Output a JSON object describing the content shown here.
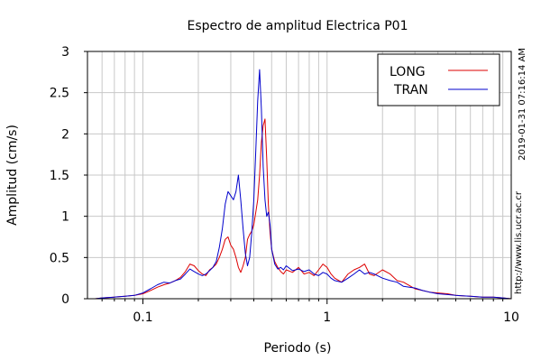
{
  "chart_data": {
    "type": "line",
    "title": "Espectro de amplitud Electrica P01",
    "xlabel": "Periodo (s)",
    "ylabel": "Amplitud (cm/s)",
    "x_scale": "log",
    "xlim": [
      0.05,
      10
    ],
    "ylim": [
      0,
      3
    ],
    "x_ticks": [
      {
        "value": 0.1,
        "label": "0.1"
      },
      {
        "value": 1,
        "label": "1"
      },
      {
        "value": 10,
        "label": "10"
      }
    ],
    "y_ticks": [
      {
        "value": 0,
        "label": "0"
      },
      {
        "value": 0.5,
        "label": "0.5"
      },
      {
        "value": 1,
        "label": "1"
      },
      {
        "value": 1.5,
        "label": "1.5"
      },
      {
        "value": 2,
        "label": "2"
      },
      {
        "value": 2.5,
        "label": "2.5"
      },
      {
        "value": 3,
        "label": "3"
      }
    ],
    "grid": true,
    "legend_position": "top-right",
    "side_text": [
      "2019-01-31 07:16:14 AM",
      "http://www.lis.ucr.ac.cr"
    ],
    "series": [
      {
        "name": "LONG",
        "color": "#dd0000",
        "x": [
          0.055,
          0.06,
          0.07,
          0.08,
          0.09,
          0.1,
          0.11,
          0.12,
          0.13,
          0.14,
          0.15,
          0.16,
          0.17,
          0.18,
          0.19,
          0.2,
          0.21,
          0.22,
          0.23,
          0.24,
          0.25,
          0.26,
          0.27,
          0.28,
          0.29,
          0.3,
          0.31,
          0.32,
          0.33,
          0.34,
          0.35,
          0.36,
          0.37,
          0.38,
          0.39,
          0.4,
          0.41,
          0.42,
          0.43,
          0.44,
          0.45,
          0.46,
          0.47,
          0.48,
          0.49,
          0.5,
          0.52,
          0.54,
          0.56,
          0.58,
          0.6,
          0.65,
          0.7,
          0.75,
          0.8,
          0.85,
          0.9,
          0.95,
          1.0,
          1.05,
          1.1,
          1.2,
          1.3,
          1.4,
          1.5,
          1.6,
          1.7,
          1.8,
          2.0,
          2.2,
          2.4,
          2.6,
          2.8,
          3.0,
          3.3,
          3.6,
          4.0,
          4.5,
          5.0,
          6.0,
          7.0,
          8.0,
          9.0,
          10.0
        ],
        "y": [
          0.0,
          0.01,
          0.02,
          0.03,
          0.04,
          0.06,
          0.1,
          0.14,
          0.17,
          0.19,
          0.22,
          0.26,
          0.33,
          0.42,
          0.4,
          0.34,
          0.3,
          0.28,
          0.35,
          0.38,
          0.42,
          0.5,
          0.6,
          0.72,
          0.75,
          0.65,
          0.6,
          0.5,
          0.38,
          0.32,
          0.4,
          0.5,
          0.72,
          0.78,
          0.82,
          0.9,
          1.05,
          1.2,
          1.5,
          1.9,
          2.1,
          2.18,
          1.7,
          1.15,
          0.8,
          0.6,
          0.45,
          0.38,
          0.33,
          0.3,
          0.35,
          0.32,
          0.38,
          0.3,
          0.32,
          0.28,
          0.35,
          0.42,
          0.38,
          0.3,
          0.25,
          0.2,
          0.3,
          0.35,
          0.38,
          0.42,
          0.3,
          0.28,
          0.35,
          0.3,
          0.22,
          0.2,
          0.16,
          0.12,
          0.1,
          0.08,
          0.07,
          0.06,
          0.04,
          0.03,
          0.02,
          0.02,
          0.01,
          0.0
        ]
      },
      {
        "name": "TRAN",
        "color": "#0000cc",
        "x": [
          0.055,
          0.06,
          0.07,
          0.08,
          0.09,
          0.1,
          0.11,
          0.12,
          0.13,
          0.14,
          0.15,
          0.16,
          0.17,
          0.18,
          0.19,
          0.2,
          0.21,
          0.22,
          0.23,
          0.24,
          0.25,
          0.26,
          0.27,
          0.28,
          0.29,
          0.3,
          0.31,
          0.32,
          0.33,
          0.34,
          0.35,
          0.36,
          0.37,
          0.38,
          0.39,
          0.4,
          0.41,
          0.42,
          0.43,
          0.44,
          0.45,
          0.46,
          0.47,
          0.48,
          0.49,
          0.5,
          0.52,
          0.54,
          0.56,
          0.58,
          0.6,
          0.65,
          0.7,
          0.75,
          0.8,
          0.85,
          0.9,
          0.95,
          1.0,
          1.05,
          1.1,
          1.2,
          1.3,
          1.4,
          1.5,
          1.6,
          1.7,
          1.8,
          2.0,
          2.2,
          2.4,
          2.6,
          2.8,
          3.0,
          3.3,
          3.6,
          4.0,
          4.5,
          5.0,
          6.0,
          7.0,
          8.0,
          9.0,
          10.0
        ],
        "y": [
          0.0,
          0.01,
          0.02,
          0.03,
          0.04,
          0.07,
          0.12,
          0.17,
          0.2,
          0.19,
          0.22,
          0.24,
          0.3,
          0.36,
          0.33,
          0.3,
          0.28,
          0.3,
          0.34,
          0.38,
          0.45,
          0.62,
          0.85,
          1.15,
          1.3,
          1.25,
          1.2,
          1.3,
          1.5,
          1.2,
          0.85,
          0.55,
          0.4,
          0.5,
          0.8,
          1.2,
          1.8,
          2.4,
          2.78,
          2.3,
          1.6,
          1.2,
          1.0,
          1.05,
          0.9,
          0.6,
          0.42,
          0.36,
          0.38,
          0.35,
          0.4,
          0.34,
          0.36,
          0.33,
          0.35,
          0.3,
          0.28,
          0.32,
          0.3,
          0.25,
          0.22,
          0.2,
          0.25,
          0.3,
          0.35,
          0.3,
          0.32,
          0.3,
          0.25,
          0.22,
          0.2,
          0.15,
          0.14,
          0.13,
          0.1,
          0.08,
          0.06,
          0.05,
          0.04,
          0.03,
          0.02,
          0.02,
          0.01,
          0.0
        ]
      }
    ]
  }
}
